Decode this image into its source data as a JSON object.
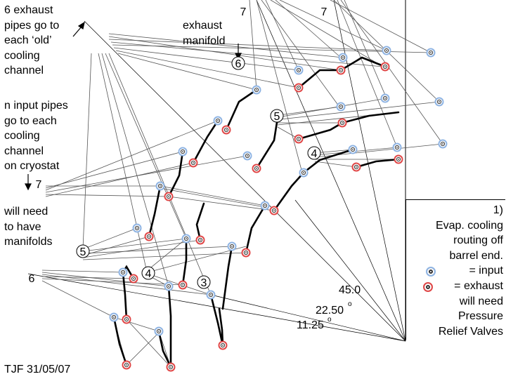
{
  "notes": {
    "exhaust_to_old": "6 exhaust\npipes go to\neach ‘old’\ncooling\nchannel",
    "exhaust_manifold": "exhaust\nmanifold",
    "input_pipes": "n input pipes\ngo to each\ncooling\nchannel\non cryostat",
    "will_need_manifolds": "will need\nto have\nmanifolds",
    "author_date": "TJF 31/05/07"
  },
  "layer_labels": {
    "top_left_7": "7",
    "top_right_7": "7",
    "manifold_6": "6",
    "upper_5": "5",
    "upper_4": "4",
    "left_7": "7",
    "left_5": "5",
    "left_6": "6",
    "lower_4": "4",
    "lower_3": "3"
  },
  "angles": {
    "a45": "45.0",
    "a22": "22.50",
    "a22_deg": "o",
    "a11": "11.25",
    "a11_deg": "o"
  },
  "legend": {
    "number": "1)",
    "line1": "Evap. cooling",
    "line2": "routing off",
    "line3": "barrel end.",
    "input": "= input",
    "exhaust": "= exhaust",
    "line4": "will need",
    "line5": "Pressure",
    "line6": "Relief Valves"
  },
  "colors": {
    "input": "#8fb4e3",
    "exhaust": "#e04848",
    "line": "#000000",
    "pipe": "#7f8fb0"
  }
}
